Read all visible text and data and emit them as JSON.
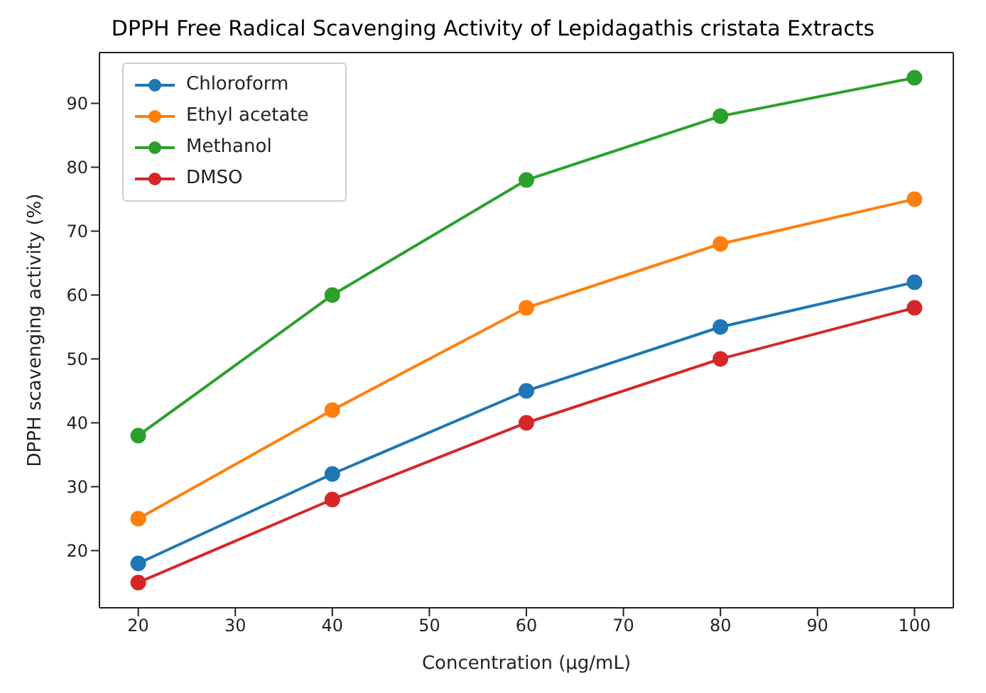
{
  "chart_data": {
    "type": "line",
    "title": "DPPH Free Radical Scavenging Activity of Lepidagathis cristata Extracts",
    "xlabel": "Concentration (μg/mL)",
    "ylabel": "DPPH scavenging activity (%)",
    "x": [
      20,
      40,
      60,
      80,
      100
    ],
    "series": [
      {
        "name": "Chloroform",
        "color": "#1f77b4",
        "values": [
          18,
          32,
          45,
          55,
          62
        ]
      },
      {
        "name": "Ethyl acetate",
        "color": "#ff7f0e",
        "values": [
          25,
          42,
          58,
          68,
          75
        ]
      },
      {
        "name": "Methanol",
        "color": "#2ca02c",
        "values": [
          38,
          60,
          78,
          88,
          94
        ]
      },
      {
        "name": "DMSO",
        "color": "#d62728",
        "values": [
          15,
          28,
          40,
          50,
          58
        ]
      }
    ],
    "xlim": [
      16,
      104
    ],
    "xticks": [
      20,
      30,
      40,
      50,
      60,
      70,
      80,
      90,
      100
    ],
    "ylim": [
      11.05,
      97.95
    ],
    "yticks": [
      20,
      30,
      40,
      50,
      60,
      70,
      80,
      90
    ],
    "grid": false,
    "legend": "top left",
    "marker": "circle",
    "line_style": "solid"
  }
}
